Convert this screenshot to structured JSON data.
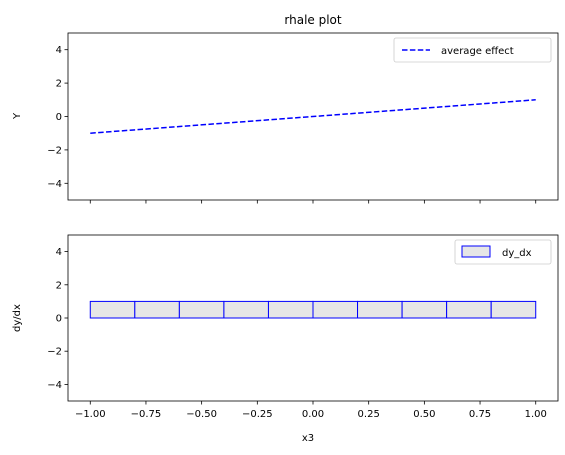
{
  "chart_data": [
    {
      "type": "line",
      "title": "rhale plot",
      "xlabel": "",
      "ylabel": "Y",
      "xlim": [
        -1.1,
        1.1
      ],
      "ylim": [
        -5,
        5
      ],
      "x_ticks": [
        -1.0,
        -0.75,
        -0.5,
        -0.25,
        0.0,
        0.25,
        0.5,
        0.75,
        1.0
      ],
      "y_ticks": [
        -4,
        -2,
        0,
        2,
        4
      ],
      "y_tick_labels": [
        "−4",
        "−2",
        "0",
        "2",
        "4"
      ],
      "x_tick_labels_visible": false,
      "grid": false,
      "legend": "top-right",
      "series": [
        {
          "name": "average effect",
          "style": "dashed",
          "color": "#0000ff",
          "x": [
            -1.0,
            1.0
          ],
          "y": [
            -1.0,
            1.0
          ]
        }
      ]
    },
    {
      "type": "bar",
      "title": "",
      "xlabel": "x3",
      "ylabel": "dy/dx",
      "xlim": [
        -1.1,
        1.1
      ],
      "ylim": [
        -5,
        5
      ],
      "x_ticks": [
        -1.0,
        -0.75,
        -0.5,
        -0.25,
        0.0,
        0.25,
        0.5,
        0.75,
        1.0
      ],
      "x_tick_labels": [
        "−1.00",
        "−0.75",
        "−0.50",
        "−0.25",
        "0.00",
        "0.25",
        "0.50",
        "0.75",
        "1.00"
      ],
      "y_ticks": [
        -4,
        -2,
        0,
        2,
        4
      ],
      "y_tick_labels": [
        "−4",
        "−2",
        "0",
        "2",
        "4"
      ],
      "grid": false,
      "legend": "top-right",
      "series": [
        {
          "name": "dy_dx",
          "fill": "#e6e6e6",
          "edge": "#0000ff",
          "bin_edges": [
            -1.0,
            -0.8,
            -0.6,
            -0.4,
            -0.2,
            0.0,
            0.2,
            0.4,
            0.6,
            0.8,
            1.0
          ],
          "values": [
            1,
            1,
            1,
            1,
            1,
            1,
            1,
            1,
            1,
            1
          ]
        }
      ]
    }
  ]
}
